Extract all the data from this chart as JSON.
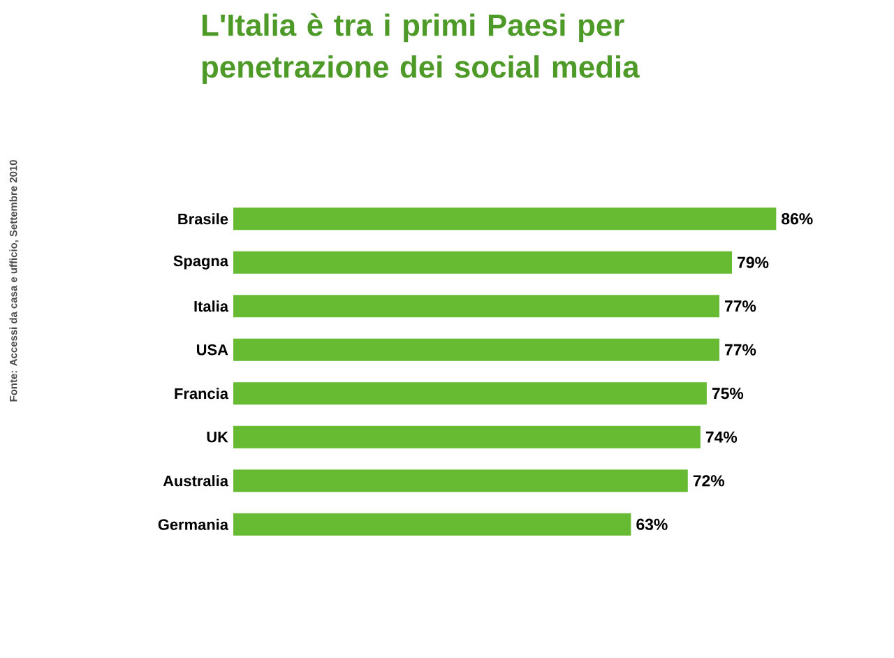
{
  "chart_data": {
    "type": "bar",
    "orientation": "horizontal",
    "title": "L'Italia è tra i primi Paesi per penetrazione dei social media",
    "categories": [
      "Brasile",
      "Spagna",
      "Italia",
      "USA",
      "Francia",
      "UK",
      "Australia",
      "Germania"
    ],
    "values": [
      86,
      79,
      77,
      77,
      75,
      74,
      72,
      63
    ],
    "value_labels": [
      "86%",
      "79%",
      "77%",
      "77%",
      "75%",
      "74%",
      "72%",
      "63%"
    ],
    "color": "#66bb33",
    "annotations": [
      "Fonte: Accessi da casa e ufficio, Settembre 2010"
    ]
  }
}
